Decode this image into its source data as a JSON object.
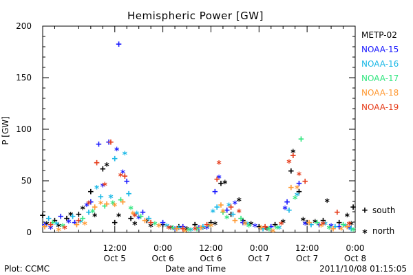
{
  "chart_data": {
    "type": "scatter",
    "title": "Hemispheric Power [GW]",
    "xlabel": "Date and Time",
    "ylabel": "P [GW]",
    "x_range": [
      "2011-10-04T18:00",
      "2011-10-08T00:00"
    ],
    "ylim": [
      0,
      200
    ],
    "y_ticks": [
      "0",
      "50",
      "100",
      "150",
      "200"
    ],
    "x_ticks": [
      {
        "t": "2011-10-05T12:00",
        "line1": "12:00",
        "line2": "Oct 5"
      },
      {
        "t": "2011-10-06T00:00",
        "line1": "0:00",
        "line2": "Oct 6"
      },
      {
        "t": "2011-10-06T12:00",
        "line1": "12:00",
        "line2": "Oct 6"
      },
      {
        "t": "2011-10-07T00:00",
        "line1": "0:00",
        "line2": "Oct 7"
      },
      {
        "t": "2011-10-07T12:00",
        "line1": "12:00",
        "line2": "Oct 7"
      },
      {
        "t": "2011-10-08T00:00",
        "line1": "0:00",
        "line2": "Oct 8"
      }
    ],
    "marker_legend": [
      {
        "symbol": "+",
        "label": "south"
      },
      {
        "symbol": "*",
        "label": "north"
      }
    ],
    "legend_position": "right",
    "series": [
      {
        "name": "METP-02",
        "color": "#000000",
        "south": [
          {
            "t": "2011-10-04T18:00",
            "y": 17
          },
          {
            "t": "2011-10-04T21:00",
            "y": 12
          },
          {
            "t": "2011-10-05T00:00",
            "y": 14
          },
          {
            "t": "2011-10-05T03:00",
            "y": 18
          },
          {
            "t": "2011-10-05T06:00",
            "y": 40
          },
          {
            "t": "2011-10-05T09:00",
            "y": 62
          },
          {
            "t": "2011-10-05T12:00",
            "y": 10
          },
          {
            "t": "2011-10-05T16:00",
            "y": 14
          },
          {
            "t": "2011-10-05T20:00",
            "y": 12
          },
          {
            "t": "2011-10-06T00:00",
            "y": 8
          },
          {
            "t": "2011-10-06T04:00",
            "y": 6
          },
          {
            "t": "2011-10-06T08:00",
            "y": 8
          },
          {
            "t": "2011-10-06T12:00",
            "y": 10
          },
          {
            "t": "2011-10-06T14:30",
            "y": 48
          },
          {
            "t": "2011-10-06T17:00",
            "y": 18
          },
          {
            "t": "2011-10-06T20:00",
            "y": 12
          },
          {
            "t": "2011-10-07T00:00",
            "y": 6
          },
          {
            "t": "2011-10-07T04:00",
            "y": 8
          },
          {
            "t": "2011-10-07T08:00",
            "y": 60
          },
          {
            "t": "2011-10-07T10:00",
            "y": 40
          },
          {
            "t": "2011-10-07T12:00",
            "y": 10
          },
          {
            "t": "2011-10-07T16:00",
            "y": 12
          },
          {
            "t": "2011-10-07T20:00",
            "y": 10
          },
          {
            "t": "2011-10-07T23:30",
            "y": 25
          }
        ],
        "north": [
          {
            "t": "2011-10-04T19:00",
            "y": 10
          },
          {
            "t": "2011-10-04T22:00",
            "y": 8
          },
          {
            "t": "2011-10-05T01:00",
            "y": 19
          },
          {
            "t": "2011-10-05T04:00",
            "y": 25
          },
          {
            "t": "2011-10-05T07:00",
            "y": 18
          },
          {
            "t": "2011-10-05T10:00",
            "y": 67
          },
          {
            "t": "2011-10-05T13:00",
            "y": 18
          },
          {
            "t": "2011-10-05T17:00",
            "y": 10
          },
          {
            "t": "2011-10-05T21:00",
            "y": 8
          },
          {
            "t": "2011-10-06T02:00",
            "y": 6
          },
          {
            "t": "2011-10-06T06:00",
            "y": 5
          },
          {
            "t": "2011-10-06T10:00",
            "y": 6
          },
          {
            "t": "2011-10-06T13:00",
            "y": 10
          },
          {
            "t": "2011-10-06T15:30",
            "y": 50
          },
          {
            "t": "2011-10-06T19:00",
            "y": 33
          },
          {
            "t": "2011-10-06T22:00",
            "y": 10
          },
          {
            "t": "2011-10-07T02:00",
            "y": 5
          },
          {
            "t": "2011-10-07T06:00",
            "y": 12
          },
          {
            "t": "2011-10-07T08:30",
            "y": 80
          },
          {
            "t": "2011-10-07T11:00",
            "y": 14
          },
          {
            "t": "2011-10-07T14:00",
            "y": 12
          },
          {
            "t": "2011-10-07T17:00",
            "y": 32
          },
          {
            "t": "2011-10-07T22:00",
            "y": 18
          },
          {
            "t": "2011-10-07T23:00",
            "y": 10
          }
        ]
      },
      {
        "name": "NOAA-15",
        "color": "#1a1aff",
        "south": [
          {
            "t": "2011-10-04T18:30",
            "y": 8
          },
          {
            "t": "2011-10-04T22:30",
            "y": 16
          },
          {
            "t": "2011-10-05T02:00",
            "y": 10
          },
          {
            "t": "2011-10-05T06:00",
            "y": 30
          },
          {
            "t": "2011-10-05T08:00",
            "y": 86
          },
          {
            "t": "2011-10-05T10:30",
            "y": 88
          },
          {
            "t": "2011-10-05T13:00",
            "y": 183
          },
          {
            "t": "2011-10-05T15:00",
            "y": 50
          },
          {
            "t": "2011-10-05T19:00",
            "y": 20
          },
          {
            "t": "2011-10-06T00:00",
            "y": 10
          },
          {
            "t": "2011-10-06T05:00",
            "y": 6
          },
          {
            "t": "2011-10-06T09:00",
            "y": 5
          },
          {
            "t": "2011-10-06T13:00",
            "y": 40
          },
          {
            "t": "2011-10-06T16:00",
            "y": 22
          },
          {
            "t": "2011-10-06T20:00",
            "y": 10
          },
          {
            "t": "2011-10-07T03:00",
            "y": 6
          },
          {
            "t": "2011-10-07T07:00",
            "y": 30
          },
          {
            "t": "2011-10-07T10:00",
            "y": 48
          },
          {
            "t": "2011-10-07T15:00",
            "y": 8
          },
          {
            "t": "2011-10-07T20:00",
            "y": 6
          }
        ],
        "north": [
          {
            "t": "2011-10-04T20:00",
            "y": 6
          },
          {
            "t": "2011-10-05T00:30",
            "y": 12
          },
          {
            "t": "2011-10-05T05:00",
            "y": 28
          },
          {
            "t": "2011-10-05T09:00",
            "y": 47
          },
          {
            "t": "2011-10-05T12:30",
            "y": 82
          },
          {
            "t": "2011-10-05T14:00",
            "y": 60
          },
          {
            "t": "2011-10-05T18:00",
            "y": 16
          },
          {
            "t": "2011-10-06T03:00",
            "y": 5
          },
          {
            "t": "2011-10-06T11:00",
            "y": 6
          },
          {
            "t": "2011-10-06T14:00",
            "y": 55
          },
          {
            "t": "2011-10-06T18:00",
            "y": 30
          },
          {
            "t": "2011-10-06T23:00",
            "y": 8
          },
          {
            "t": "2011-10-07T06:30",
            "y": 25
          },
          {
            "t": "2011-10-07T11:30",
            "y": 10
          },
          {
            "t": "2011-10-07T18:00",
            "y": 8
          },
          {
            "t": "2011-10-07T22:30",
            "y": 6
          }
        ]
      },
      {
        "name": "NOAA-16",
        "color": "#1ab8e6",
        "south": [
          {
            "t": "2011-10-04T19:30",
            "y": 14
          },
          {
            "t": "2011-10-05T01:30",
            "y": 16
          },
          {
            "t": "2011-10-05T05:30",
            "y": 20
          },
          {
            "t": "2011-10-05T08:30",
            "y": 35
          },
          {
            "t": "2011-10-05T12:00",
            "y": 72
          },
          {
            "t": "2011-10-05T15:30",
            "y": 38
          },
          {
            "t": "2011-10-05T20:30",
            "y": 14
          },
          {
            "t": "2011-10-06T04:00",
            "y": 5
          },
          {
            "t": "2011-10-06T10:00",
            "y": 6
          },
          {
            "t": "2011-10-06T13:30",
            "y": 25
          },
          {
            "t": "2011-10-06T17:30",
            "y": 18
          },
          {
            "t": "2011-10-07T01:00",
            "y": 4
          },
          {
            "t": "2011-10-07T07:30",
            "y": 22
          },
          {
            "t": "2011-10-07T13:00",
            "y": 8
          },
          {
            "t": "2011-10-07T19:00",
            "y": 6
          },
          {
            "t": "2011-10-07T23:00",
            "y": 4
          }
        ],
        "north": [
          {
            "t": "2011-10-04T21:30",
            "y": 10
          },
          {
            "t": "2011-10-05T03:30",
            "y": 12
          },
          {
            "t": "2011-10-05T07:30",
            "y": 45
          },
          {
            "t": "2011-10-05T11:00",
            "y": 36
          },
          {
            "t": "2011-10-05T14:30",
            "y": 78
          },
          {
            "t": "2011-10-05T17:30",
            "y": 20
          },
          {
            "t": "2011-10-06T01:00",
            "y": 8
          },
          {
            "t": "2011-10-06T07:00",
            "y": 4
          },
          {
            "t": "2011-10-06T12:30",
            "y": 22
          },
          {
            "t": "2011-10-06T16:30",
            "y": 28
          },
          {
            "t": "2011-10-06T21:00",
            "y": 10
          },
          {
            "t": "2011-10-07T05:00",
            "y": 6
          },
          {
            "t": "2011-10-07T09:30",
            "y": 38
          },
          {
            "t": "2011-10-07T16:30",
            "y": 10
          },
          {
            "t": "2011-10-07T21:30",
            "y": 8
          }
        ]
      },
      {
        "name": "NOAA-17",
        "color": "#33e680",
        "south": [
          {
            "t": "2011-10-04T20:30",
            "y": 10
          },
          {
            "t": "2011-10-05T04:00",
            "y": 14
          },
          {
            "t": "2011-10-05T09:30",
            "y": 26
          },
          {
            "t": "2011-10-05T13:30",
            "y": 32
          },
          {
            "t": "2011-10-05T18:30",
            "y": 16
          },
          {
            "t": "2011-10-06T02:30",
            "y": 5
          },
          {
            "t": "2011-10-06T08:30",
            "y": 4
          },
          {
            "t": "2011-10-06T15:00",
            "y": 20
          },
          {
            "t": "2011-10-06T19:30",
            "y": 14
          },
          {
            "t": "2011-10-07T02:30",
            "y": 4
          },
          {
            "t": "2011-10-07T10:30",
            "y": 91
          },
          {
            "t": "2011-10-07T14:30",
            "y": 10
          },
          {
            "t": "2011-10-07T21:00",
            "y": 8
          }
        ],
        "north": [
          {
            "t": "2011-10-04T23:00",
            "y": 8
          },
          {
            "t": "2011-10-05T06:30",
            "y": 22
          },
          {
            "t": "2011-10-05T11:30",
            "y": 30
          },
          {
            "t": "2011-10-05T16:00",
            "y": 25
          },
          {
            "t": "2011-10-05T22:00",
            "y": 10
          },
          {
            "t": "2011-10-06T06:30",
            "y": 4
          },
          {
            "t": "2011-10-06T11:30",
            "y": 8
          },
          {
            "t": "2011-10-06T16:00",
            "y": 16
          },
          {
            "t": "2011-10-06T21:30",
            "y": 8
          },
          {
            "t": "2011-10-07T04:30",
            "y": 6
          },
          {
            "t": "2011-10-07T09:00",
            "y": 35
          },
          {
            "t": "2011-10-07T17:30",
            "y": 6
          },
          {
            "t": "2011-10-07T23:30",
            "y": 4
          }
        ]
      },
      {
        "name": "NOAA-18",
        "color": "#ff9933",
        "south": [
          {
            "t": "2011-10-04T18:30",
            "y": 6
          },
          {
            "t": "2011-10-05T02:30",
            "y": 8
          },
          {
            "t": "2011-10-05T07:00",
            "y": 25
          },
          {
            "t": "2011-10-05T10:00",
            "y": 28
          },
          {
            "t": "2011-10-05T14:00",
            "y": 30
          },
          {
            "t": "2011-10-05T19:30",
            "y": 12
          },
          {
            "t": "2011-10-06T03:30",
            "y": 4
          },
          {
            "t": "2011-10-06T09:30",
            "y": 5
          },
          {
            "t": "2011-10-06T14:30",
            "y": 27
          },
          {
            "t": "2011-10-06T18:00",
            "y": 12
          },
          {
            "t": "2011-10-07T00:30",
            "y": 5
          },
          {
            "t": "2011-10-07T08:00",
            "y": 44
          },
          {
            "t": "2011-10-07T12:30",
            "y": 10
          },
          {
            "t": "2011-10-07T18:30",
            "y": 4
          },
          {
            "t": "2011-10-07T22:00",
            "y": 6
          }
        ],
        "north": [
          {
            "t": "2011-10-04T22:00",
            "y": 4
          },
          {
            "t": "2011-10-05T04:30",
            "y": 10
          },
          {
            "t": "2011-10-05T08:30",
            "y": 30
          },
          {
            "t": "2011-10-05T12:00",
            "y": 28
          },
          {
            "t": "2011-10-05T16:30",
            "y": 20
          },
          {
            "t": "2011-10-05T23:00",
            "y": 8
          },
          {
            "t": "2011-10-06T05:30",
            "y": 3
          },
          {
            "t": "2011-10-06T12:00",
            "y": 8
          },
          {
            "t": "2011-10-06T15:00",
            "y": 22
          },
          {
            "t": "2011-10-06T20:30",
            "y": 10
          },
          {
            "t": "2011-10-07T03:30",
            "y": 3
          },
          {
            "t": "2011-10-07T09:30",
            "y": 45
          },
          {
            "t": "2011-10-07T15:30",
            "y": 8
          },
          {
            "t": "2011-10-07T20:30",
            "y": 5
          }
        ]
      },
      {
        "name": "NOAA-19",
        "color": "#e63c1a",
        "south": [
          {
            "t": "2011-10-04T20:00",
            "y": 8
          },
          {
            "t": "2011-10-05T03:00",
            "y": 12
          },
          {
            "t": "2011-10-05T07:30",
            "y": 68
          },
          {
            "t": "2011-10-05T11:00",
            "y": 88
          },
          {
            "t": "2011-10-05T14:30",
            "y": 55
          },
          {
            "t": "2011-10-05T21:00",
            "y": 10
          },
          {
            "t": "2011-10-06T05:00",
            "y": 4
          },
          {
            "t": "2011-10-06T11:00",
            "y": 8
          },
          {
            "t": "2011-10-06T13:30",
            "y": 52
          },
          {
            "t": "2011-10-06T17:00",
            "y": 25
          },
          {
            "t": "2011-10-07T01:30",
            "y": 6
          },
          {
            "t": "2011-10-07T08:30",
            "y": 75
          },
          {
            "t": "2011-10-07T11:30",
            "y": 50
          },
          {
            "t": "2011-10-07T19:30",
            "y": 20
          }
        ],
        "north": [
          {
            "t": "2011-10-04T23:30",
            "y": 6
          },
          {
            "t": "2011-10-05T05:30",
            "y": 30
          },
          {
            "t": "2011-10-05T09:30",
            "y": 48
          },
          {
            "t": "2011-10-05T13:30",
            "y": 57
          },
          {
            "t": "2011-10-05T17:00",
            "y": 18
          },
          {
            "t": "2011-10-06T01:30",
            "y": 6
          },
          {
            "t": "2011-10-06T08:00",
            "y": 5
          },
          {
            "t": "2011-10-06T14:00",
            "y": 69
          },
          {
            "t": "2011-10-06T19:00",
            "y": 22
          },
          {
            "t": "2011-10-07T05:30",
            "y": 10
          },
          {
            "t": "2011-10-07T07:30",
            "y": 70
          },
          {
            "t": "2011-10-07T10:00",
            "y": 58
          },
          {
            "t": "2011-10-07T16:00",
            "y": 10
          },
          {
            "t": "2011-10-07T22:30",
            "y": 10
          }
        ]
      }
    ]
  },
  "footer": {
    "plot_credit": "Plot: CCMC",
    "timestamp": "2011/10/08 01:15:05"
  }
}
